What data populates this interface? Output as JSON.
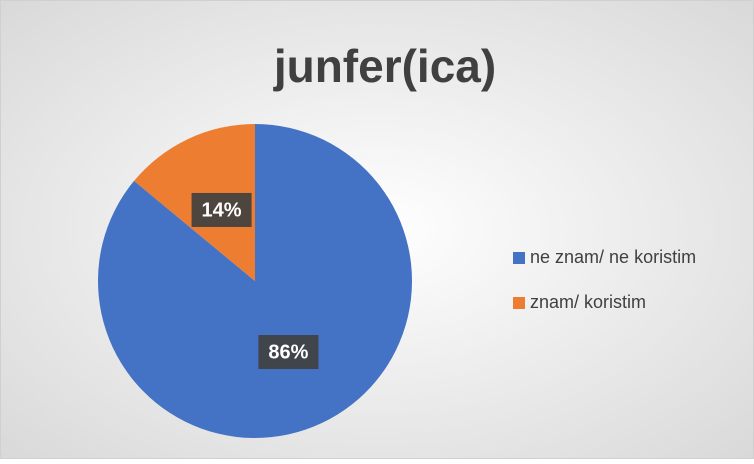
{
  "chart_data": {
    "type": "pie",
    "title": "junfer(ica)",
    "categories": [
      "ne znam/ ne koristim",
      "znam/ koristim"
    ],
    "values": [
      86,
      14
    ],
    "value_labels": [
      "86%",
      "14%"
    ],
    "colors": [
      "#4472c4",
      "#ed7d31"
    ],
    "legend": "right"
  }
}
